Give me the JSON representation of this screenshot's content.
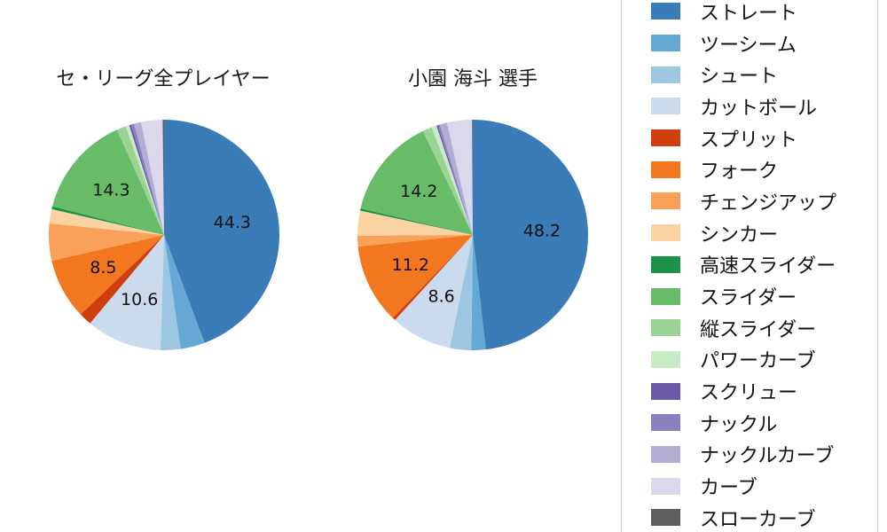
{
  "figure": {
    "background": "#ffffff"
  },
  "legend": {
    "items": [
      {
        "label": "ストレート",
        "color": "#3a7cb8"
      },
      {
        "label": "ツーシーム",
        "color": "#66a8d4"
      },
      {
        "label": "シュート",
        "color": "#9dc6e0"
      },
      {
        "label": "カットボール",
        "color": "#cadbee"
      },
      {
        "label": "スプリット",
        "color": "#cf3f0e"
      },
      {
        "label": "フォーク",
        "color": "#f3771e"
      },
      {
        "label": "チェンジアップ",
        "color": "#f9a158"
      },
      {
        "label": "シンカー",
        "color": "#fbd2a2"
      },
      {
        "label": "高速スライダー",
        "color": "#1e9148"
      },
      {
        "label": "スライダー",
        "color": "#68bc68"
      },
      {
        "label": "縦スライダー",
        "color": "#99d494"
      },
      {
        "label": "パワーカーブ",
        "color": "#c8ebc5"
      },
      {
        "label": "スクリュー",
        "color": "#6a5aa8"
      },
      {
        "label": "ナックル",
        "color": "#8b7fc0"
      },
      {
        "label": "ナックルカーブ",
        "color": "#b3add6"
      },
      {
        "label": "カーブ",
        "color": "#d9d8ec"
      },
      {
        "label": "スローカーブ",
        "color": "#5e5e5e"
      }
    ]
  },
  "chart_data": [
    {
      "type": "pie",
      "title": "セ・リーグ全プレイヤー",
      "categories": [
        "ストレート",
        "ツーシーム",
        "シュート",
        "カットボール",
        "スプリット",
        "フォーク",
        "チェンジアップ",
        "シンカー",
        "高速スライダー",
        "スライダー",
        "縦スライダー",
        "パワーカーブ",
        "スクリュー",
        "ナックル",
        "ナックルカーブ",
        "カーブ",
        "スローカーブ"
      ],
      "values": [
        44.3,
        3.4,
        2.8,
        10.6,
        1.8,
        8.5,
        5.2,
        2.0,
        0.4,
        14.3,
        1.3,
        0.5,
        0.3,
        0.4,
        1.0,
        3.0,
        0.2
      ],
      "value_labels": [
        "44.3",
        null,
        null,
        "10.6",
        null,
        "8.5",
        null,
        null,
        null,
        "14.3",
        null,
        null,
        null,
        null,
        null,
        null,
        null
      ],
      "start_angle_deg": 90,
      "direction": "clockwise",
      "label_radius_fraction": 0.6
    },
    {
      "type": "pie",
      "title": "小園 海斗  選手",
      "categories": [
        "ストレート",
        "ツーシーム",
        "シュート",
        "カットボール",
        "スプリット",
        "フォーク",
        "チェンジアップ",
        "シンカー",
        "高速スライダー",
        "スライダー",
        "縦スライダー",
        "パワーカーブ",
        "スクリュー",
        "ナックル",
        "ナックルカーブ",
        "カーブ",
        "スローカーブ"
      ],
      "values": [
        48.2,
        2.0,
        3.0,
        8.6,
        0.4,
        11.2,
        1.5,
        3.5,
        0.3,
        14.2,
        1.3,
        0.7,
        0.2,
        0.3,
        1.0,
        3.5,
        0.1
      ],
      "value_labels": [
        "48.2",
        null,
        null,
        "8.6",
        null,
        "11.2",
        null,
        null,
        null,
        "14.2",
        null,
        null,
        null,
        null,
        null,
        null,
        null
      ],
      "start_angle_deg": 90,
      "direction": "clockwise",
      "label_radius_fraction": 0.6
    }
  ]
}
